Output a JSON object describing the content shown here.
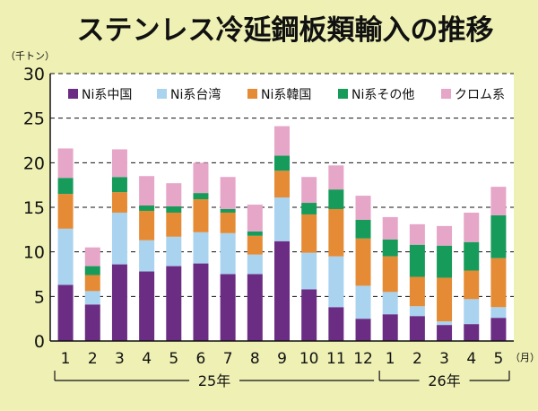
{
  "chart_data": {
    "type": "bar",
    "stacked": true,
    "title": "ステンレス冷延鋼板類輸入の推移",
    "ylabel": "（千トン）",
    "xlabel_unit": "（月）",
    "ylim": [
      0,
      30
    ],
    "yticks": [
      0,
      5,
      10,
      15,
      20,
      25,
      30
    ],
    "grid": true,
    "legend_position": "top",
    "categories": [
      "1",
      "2",
      "3",
      "4",
      "5",
      "6",
      "7",
      "8",
      "9",
      "10",
      "11",
      "12",
      "1",
      "2",
      "3",
      "4",
      "5"
    ],
    "year_groups": [
      {
        "label": "25年",
        "from": 0,
        "to": 11
      },
      {
        "label": "26年",
        "from": 12,
        "to": 16
      }
    ],
    "series": [
      {
        "name": "Ni系中国",
        "color": "#6b2d83",
        "values": [
          6.3,
          4.1,
          8.6,
          7.8,
          8.4,
          8.7,
          7.5,
          7.5,
          11.2,
          5.8,
          3.8,
          2.5,
          3.0,
          2.8,
          1.8,
          1.9,
          2.6
        ]
      },
      {
        "name": "Ni系台湾",
        "color": "#a9d3ef",
        "values": [
          6.3,
          1.5,
          5.8,
          3.5,
          3.3,
          3.5,
          4.6,
          2.2,
          4.9,
          4.1,
          5.7,
          3.7,
          2.5,
          1.1,
          0.4,
          2.8,
          1.2
        ]
      },
      {
        "name": "Ni系韓国",
        "color": "#e58b35",
        "values": [
          3.9,
          1.8,
          2.3,
          3.3,
          2.7,
          3.7,
          2.3,
          2.1,
          3.0,
          4.3,
          5.3,
          5.3,
          4.0,
          3.3,
          4.9,
          3.2,
          5.5
        ]
      },
      {
        "name": "Ni系その他",
        "color": "#169b5a",
        "values": [
          1.8,
          1.0,
          1.7,
          0.6,
          0.7,
          0.7,
          0.4,
          0.5,
          1.7,
          1.3,
          2.2,
          2.1,
          1.9,
          3.6,
          3.6,
          3.2,
          4.8
        ]
      },
      {
        "name": "クロム系",
        "color": "#e6a6c8",
        "values": [
          3.3,
          2.1,
          3.1,
          3.3,
          2.6,
          3.4,
          3.6,
          3.0,
          3.3,
          2.9,
          2.7,
          2.7,
          2.5,
          2.3,
          2.2,
          3.3,
          3.2
        ]
      }
    ]
  }
}
